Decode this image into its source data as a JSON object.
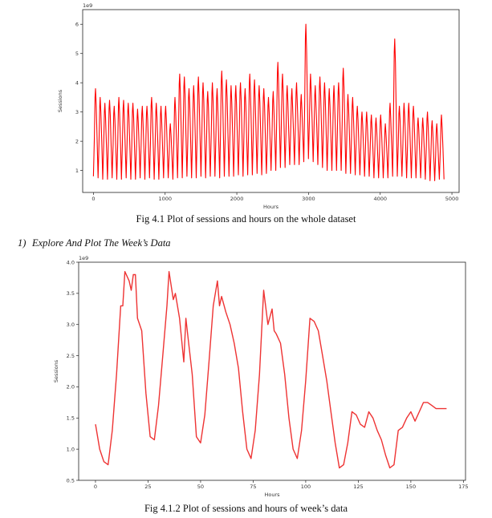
{
  "chart_data": [
    {
      "type": "line",
      "offset_label": "1e9",
      "xlabel": "Hours",
      "ylabel": "Sessions",
      "xlim": [
        -150,
        5100
      ],
      "ylim": [
        0.25,
        6.5
      ],
      "xticks": [
        0,
        1000,
        2000,
        3000,
        4000,
        5000
      ],
      "yticks": [
        1,
        2,
        3,
        4,
        5,
        6
      ],
      "color": "#ff0000",
      "series": [
        {
          "peaks": [
            3.8,
            3.5,
            3.3,
            3.4,
            3.2,
            3.5,
            3.4,
            3.3,
            3.3,
            3.1,
            3.2,
            3.2,
            3.5,
            3.3,
            3.2,
            3.2,
            2.6,
            3.5,
            4.3,
            4.2,
            3.8,
            3.9,
            4.2,
            4.0,
            3.7,
            4.0,
            3.8,
            4.4,
            4.1,
            3.9,
            3.9,
            4.0,
            3.8,
            4.3,
            4.1,
            3.9,
            3.8,
            3.5,
            3.7,
            4.7,
            4.3,
            3.9,
            3.8,
            4.0,
            3.6,
            6.0,
            4.3,
            3.9,
            4.2,
            4.0,
            3.8,
            3.9,
            4.0,
            4.5,
            3.6,
            3.5,
            3.2,
            3.0,
            3.0,
            2.9,
            2.8,
            2.9,
            2.6,
            3.3,
            5.5,
            3.2,
            3.3,
            3.3,
            3.2,
            2.8,
            2.8,
            3.0,
            2.7,
            2.6,
            2.9
          ],
          "troughs": [
            0.8,
            0.75,
            0.7,
            0.7,
            0.75,
            0.7,
            0.7,
            0.75,
            0.7,
            0.7,
            0.75,
            0.7,
            0.75,
            0.7,
            0.7,
            0.75,
            0.75,
            0.7,
            0.75,
            0.75,
            0.8,
            0.75,
            0.75,
            0.8,
            0.75,
            0.8,
            0.8,
            0.75,
            0.8,
            0.8,
            0.8,
            0.85,
            0.8,
            0.85,
            0.85,
            0.9,
            0.85,
            0.9,
            1.0,
            1.0,
            1.1,
            1.1,
            1.2,
            1.2,
            1.2,
            1.3,
            1.4,
            1.3,
            1.2,
            1.1,
            1.0,
            1.0,
            1.0,
            1.0,
            0.9,
            0.9,
            0.85,
            0.85,
            0.8,
            0.8,
            0.75,
            0.75,
            0.75,
            0.75,
            0.8,
            0.8,
            0.8,
            0.75,
            0.75,
            0.75,
            0.75,
            0.7,
            0.65,
            0.65,
            0.7
          ]
        }
      ]
    },
    {
      "type": "line",
      "offset_label": "1e9",
      "xlabel": "Hours",
      "ylabel": "Sessions",
      "xlim": [
        -8,
        176
      ],
      "ylim": [
        0.5,
        4.0
      ],
      "xticks": [
        0,
        25,
        50,
        75,
        100,
        125,
        150,
        175
      ],
      "yticks": [
        0.5,
        1.0,
        1.5,
        2.0,
        2.5,
        3.0,
        3.5,
        4.0
      ],
      "ytick_labels": [
        "0.5",
        "1.0",
        "1.5",
        "2.0",
        "2.5",
        "3.0",
        "3.5",
        "4.0"
      ],
      "color": "#ee3333",
      "series": [
        {
          "x": [
            0,
            2,
            4,
            6,
            8,
            10,
            12,
            13,
            14,
            16,
            17,
            18,
            19,
            20,
            22,
            24,
            26,
            28,
            30,
            32,
            34,
            35,
            37,
            38,
            40,
            42,
            43,
            44,
            46,
            48,
            50,
            52,
            54,
            56,
            58,
            59,
            60,
            62,
            64,
            66,
            68,
            70,
            72,
            74,
            76,
            78,
            80,
            82,
            84,
            85,
            86,
            88,
            90,
            92,
            94,
            96,
            98,
            100,
            102,
            104,
            106,
            108,
            110,
            112,
            114,
            116,
            118,
            120,
            122,
            124,
            126,
            128,
            130,
            132,
            134,
            136,
            138,
            140,
            142,
            144,
            146,
            148,
            150,
            152,
            154,
            156,
            158,
            160,
            162,
            164,
            166,
            167
          ],
          "y": [
            1.4,
            1.0,
            0.8,
            0.75,
            1.3,
            2.2,
            3.3,
            3.3,
            3.85,
            3.7,
            3.55,
            3.8,
            3.8,
            3.1,
            2.9,
            1.9,
            1.2,
            1.15,
            1.7,
            2.5,
            3.3,
            3.85,
            3.4,
            3.5,
            3.1,
            2.4,
            3.1,
            2.8,
            2.2,
            1.2,
            1.1,
            1.55,
            2.4,
            3.3,
            3.7,
            3.3,
            3.45,
            3.2,
            3.0,
            2.7,
            2.3,
            1.6,
            1.0,
            0.85,
            1.3,
            2.2,
            3.55,
            3.0,
            3.25,
            2.9,
            2.85,
            2.7,
            2.2,
            1.5,
            1.0,
            0.85,
            1.3,
            2.1,
            3.1,
            3.05,
            2.9,
            2.5,
            2.1,
            1.6,
            1.1,
            0.7,
            0.75,
            1.1,
            1.6,
            1.55,
            1.4,
            1.35,
            1.6,
            1.5,
            1.3,
            1.15,
            0.9,
            0.7,
            0.75,
            1.3,
            1.35,
            1.5,
            1.6,
            1.45,
            1.6,
            1.75,
            1.75,
            1.7,
            1.65,
            1.65,
            1.65,
            1.65
          ]
        }
      ]
    }
  ],
  "captions": {
    "fig1": "Fig 4.1 Plot of sessions and hours on the whole dataset",
    "fig2": "Fig 4.1.2 Plot of sessions and hours of week’s data"
  },
  "section": {
    "number": "1)",
    "title": "Explore And Plot The Week’s Data"
  }
}
